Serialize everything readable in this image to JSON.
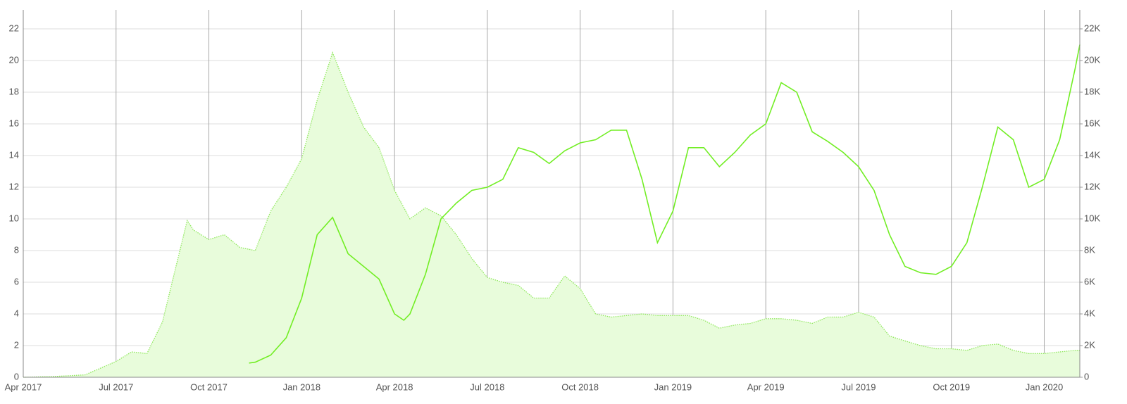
{
  "chart_data": {
    "type": "line",
    "xlim": [
      0,
      34.15
    ],
    "xticks": [
      {
        "value": 0,
        "label": "Apr 2017"
      },
      {
        "value": 3,
        "label": "Jul 2017"
      },
      {
        "value": 6,
        "label": "Oct 2017"
      },
      {
        "value": 9,
        "label": "Jan 2018"
      },
      {
        "value": 12,
        "label": "Apr 2018"
      },
      {
        "value": 15,
        "label": "Jul 2018"
      },
      {
        "value": 18,
        "label": "Oct 2018"
      },
      {
        "value": 21,
        "label": "Jan 2019"
      },
      {
        "value": 24,
        "label": "Apr 2019"
      },
      {
        "value": 27,
        "label": "Jul 2019"
      },
      {
        "value": 30,
        "label": "Oct 2019"
      },
      {
        "value": 33,
        "label": "Jan 2020"
      }
    ],
    "ylim": [
      0,
      22
    ],
    "yticks": [
      0,
      2,
      4,
      6,
      8,
      10,
      12,
      14,
      16,
      18,
      20,
      22
    ],
    "y2lim": [
      0,
      22000
    ],
    "y2ticks": [
      0,
      {
        "value": 2000,
        "label": "2K"
      },
      {
        "value": 4000,
        "label": "4K"
      },
      {
        "value": 6000,
        "label": "6K"
      },
      {
        "value": 8000,
        "label": "8K"
      },
      {
        "value": 10000,
        "label": "10K"
      },
      {
        "value": 12000,
        "label": "12K"
      },
      {
        "value": 14000,
        "label": "14K"
      },
      {
        "value": 16000,
        "label": "16K"
      },
      {
        "value": 18000,
        "label": "18K"
      },
      {
        "value": 20000,
        "label": "20K"
      },
      {
        "value": 22000,
        "label": "22K"
      }
    ],
    "grid": true,
    "series": [
      {
        "style": "area",
        "color": "#8fe85c",
        "fill": "#e8fcdb",
        "x": [
          0,
          1,
          2,
          3,
          3.5,
          4,
          4.5,
          5,
          5.3,
          5.5,
          6,
          6.5,
          7,
          7.5,
          8,
          8.5,
          9,
          9.5,
          10,
          10.5,
          11,
          11.5,
          12,
          12.5,
          13,
          13.5,
          14,
          14.5,
          15,
          15.5,
          16,
          16.5,
          17,
          17.5,
          18,
          18.5,
          19,
          19.5,
          20,
          20.5,
          21,
          21.5,
          22,
          22.5,
          23,
          23.5,
          24,
          24.5,
          25,
          25.5,
          26,
          26.5,
          27,
          27.5,
          28,
          28.5,
          29,
          29.5,
          30,
          30.5,
          31,
          31.5,
          32,
          32.5,
          33,
          33.5,
          34,
          34.15
        ],
        "values": [
          0,
          0.05,
          0.15,
          1.0,
          1.6,
          1.5,
          3.5,
          7.5,
          9.9,
          9.3,
          8.7,
          9.0,
          8.2,
          8.0,
          10.5,
          12,
          13.8,
          17.5,
          20.5,
          18,
          15.8,
          14.5,
          11.8,
          10,
          10.7,
          10.2,
          9.0,
          7.5,
          6.3,
          6.0,
          5.8,
          5.0,
          5.0,
          6.4,
          5.6,
          4.0,
          3.8,
          3.9,
          4.0,
          3.9,
          3.9,
          3.9,
          3.6,
          3.1,
          3.3,
          3.4,
          3.7,
          3.7,
          3.6,
          3.4,
          3.8,
          3.8,
          4.1,
          3.8,
          2.6,
          2.3,
          2.0,
          1.8,
          1.8,
          1.7,
          2.0,
          2.1,
          1.7,
          1.5,
          1.5,
          1.6,
          1.7,
          1.7
        ]
      },
      {
        "style": "line",
        "axis": "y2",
        "color": "#72ee24",
        "x": [
          7.3,
          7.5,
          8,
          8.5,
          9,
          9.5,
          10,
          10.5,
          11,
          11.5,
          12,
          12.3,
          12.5,
          13,
          13.5,
          14,
          14.5,
          15,
          15.5,
          16,
          16.5,
          17,
          17.5,
          18,
          18.5,
          19,
          19.5,
          20,
          20.5,
          21,
          21.5,
          22,
          22.5,
          23,
          23.5,
          24,
          24.5,
          25,
          25.5,
          26,
          26.5,
          27,
          27.5,
          28,
          28.5,
          29,
          29.5,
          30,
          30.5,
          31,
          31.5,
          32,
          32.5,
          33,
          33.5,
          34,
          34.15
        ],
        "values": [
          900,
          950,
          1400,
          2500,
          5000,
          9000,
          10100,
          7800,
          7000,
          6200,
          4000,
          3600,
          4000,
          6500,
          10000,
          11000,
          11800,
          12000,
          12500,
          14500,
          14200,
          13500,
          14300,
          14800,
          15000,
          15600,
          15600,
          12500,
          8500,
          10500,
          14500,
          14500,
          13300,
          14200,
          15300,
          16000,
          18600,
          18000,
          15500,
          14900,
          14200,
          13300,
          11800,
          9000,
          7000,
          6600,
          6500,
          7000,
          8500,
          12000,
          15800,
          15000,
          12000,
          12500,
          15000,
          19500,
          21000
        ]
      }
    ]
  }
}
